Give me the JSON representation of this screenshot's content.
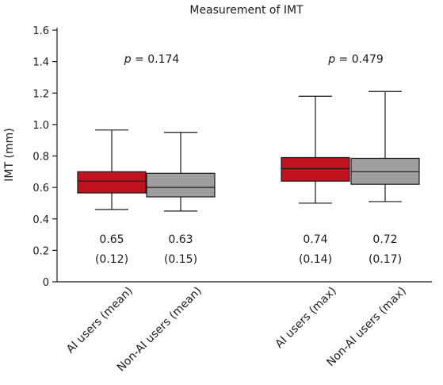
{
  "chart_data": {
    "type": "box",
    "title": "Measurement of IMT",
    "xlabel": "",
    "ylabel": "IMT (mm)",
    "ylim": [
      0,
      1.6
    ],
    "yticks": [
      "0",
      "0.2",
      "0.4",
      "0.6",
      "0.8",
      "1.0",
      "1.2",
      "1.4",
      "1.6"
    ],
    "grid": false,
    "categories": [
      "AI users (mean)",
      "Non-AI users (mean)",
      "AI users (max)",
      "Non-AI users (max)"
    ],
    "boxes": [
      {
        "label": "AI users (mean)",
        "min": 0.46,
        "q1": 0.565,
        "median": 0.64,
        "q3": 0.7,
        "max": 0.965,
        "mean_text": "0.65",
        "sd_text": "(0.12)",
        "color": "#c1121f"
      },
      {
        "label": "Non-AI users (mean)",
        "min": 0.45,
        "q1": 0.54,
        "median": 0.6,
        "q3": 0.69,
        "max": 0.95,
        "mean_text": "0.63",
        "sd_text": "(0.15)",
        "color": "#9e9e9e"
      },
      {
        "label": "AI users (max)",
        "min": 0.5,
        "q1": 0.64,
        "median": 0.72,
        "q3": 0.79,
        "max": 1.18,
        "mean_text": "0.74",
        "sd_text": "(0.14)",
        "color": "#c1121f"
      },
      {
        "label": "Non-AI users (max)",
        "min": 0.51,
        "q1": 0.62,
        "median": 0.7,
        "q3": 0.785,
        "max": 1.21,
        "mean_text": "0.72",
        "sd_text": "(0.17)",
        "color": "#9e9e9e"
      }
    ],
    "annotations": [
      {
        "p_symbol": "p",
        "p_rest": " = 0.174",
        "pair": [
          0,
          1
        ]
      },
      {
        "p_symbol": "p",
        "p_rest": " = 0.479",
        "pair": [
          2,
          3
        ]
      }
    ]
  }
}
